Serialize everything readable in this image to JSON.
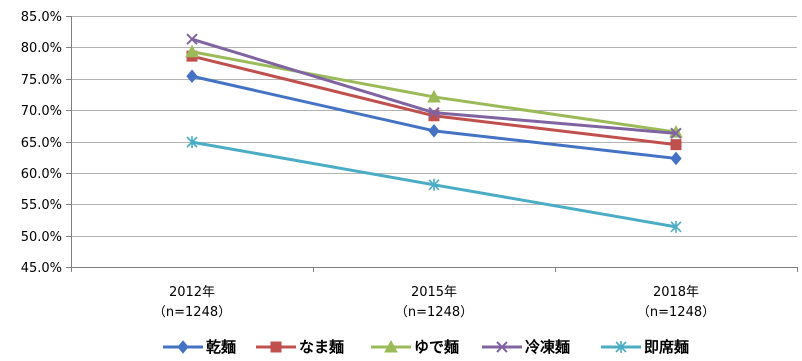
{
  "chart_data": {
    "type": "line",
    "categories": [
      "2012年\n（n=1248）",
      "2015年\n（n=1248）",
      "2018年\n（n=1248）"
    ],
    "category_lines": [
      [
        "2012年",
        "（n=1248）"
      ],
      [
        "2015年",
        "（n=1248）"
      ],
      [
        "2018年",
        "（n=1248）"
      ]
    ],
    "ylim": [
      0.45,
      0.85
    ],
    "ytick_step": 0.05,
    "ytick_labels": [
      "85.0%",
      "80.0%",
      "75.0%",
      "70.0%",
      "65.0%",
      "60.0%",
      "55.0%",
      "50.0%",
      "45.0%"
    ],
    "grid": "horizontal",
    "legend_position": "bottom",
    "series": [
      {
        "name": "乾麺",
        "values": [
          0.754,
          0.667,
          0.623
        ],
        "color": "#4472c4",
        "marker": "diamond"
      },
      {
        "name": "なま麺",
        "values": [
          0.786,
          0.691,
          0.645
        ],
        "color": "#c0504d",
        "marker": "square"
      },
      {
        "name": "ゆで麺",
        "values": [
          0.793,
          0.721,
          0.665
        ],
        "color": "#9bbb59",
        "marker": "triangle"
      },
      {
        "name": "冷凍麺",
        "values": [
          0.813,
          0.696,
          0.663
        ],
        "color": "#8064a2",
        "marker": "x"
      },
      {
        "name": "即席麺",
        "values": [
          0.649,
          0.581,
          0.514
        ],
        "color": "#4bacc6",
        "marker": "star"
      }
    ]
  }
}
